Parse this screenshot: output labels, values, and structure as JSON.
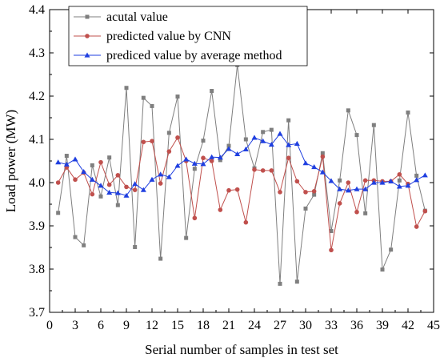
{
  "chart_data": {
    "type": "line",
    "title": "",
    "xlabel": "Serial number of samples in test set",
    "ylabel": "Load power (MW)",
    "xlim": [
      0,
      45
    ],
    "ylim": [
      3.7,
      4.4
    ],
    "xticks": [
      0,
      3,
      6,
      9,
      12,
      15,
      18,
      21,
      24,
      27,
      30,
      33,
      36,
      39,
      42,
      45
    ],
    "yticks": [
      3.7,
      3.8,
      3.9,
      4.0,
      4.1,
      4.2,
      4.3,
      4.4
    ],
    "grid": false,
    "legend_position": "top-left",
    "x": [
      1,
      2,
      3,
      4,
      5,
      6,
      7,
      8,
      9,
      10,
      11,
      12,
      13,
      14,
      15,
      16,
      17,
      18,
      19,
      20,
      21,
      22,
      23,
      24,
      25,
      26,
      27,
      28,
      29,
      30,
      31,
      32,
      33,
      34,
      35,
      36,
      37,
      38,
      39,
      40,
      41,
      42,
      43,
      44
    ],
    "series": [
      {
        "name": "acutal value",
        "color": "#7f7f7f",
        "marker": "square",
        "values": [
          3.93,
          4.062,
          3.874,
          3.855,
          4.04,
          3.968,
          4.058,
          3.948,
          4.219,
          3.851,
          4.196,
          4.177,
          3.824,
          4.115,
          4.199,
          3.872,
          4.032,
          4.097,
          4.212,
          4.052,
          4.085,
          4.272,
          4.1,
          4.033,
          4.117,
          4.122,
          3.766,
          4.144,
          3.771,
          3.94,
          3.972,
          4.068,
          3.888,
          4.005,
          4.167,
          4.11,
          3.929,
          4.133,
          3.799,
          3.845,
          4.005,
          4.162,
          4.016,
          3.935
        ]
      },
      {
        "name": "predicted value by CNN",
        "color": "#c0504d",
        "marker": "circle",
        "values": [
          4.0,
          4.035,
          4.007,
          4.023,
          3.973,
          4.047,
          3.995,
          4.017,
          3.99,
          3.983,
          4.094,
          4.096,
          3.998,
          4.072,
          4.104,
          4.05,
          3.918,
          4.057,
          4.05,
          3.937,
          3.982,
          3.984,
          3.908,
          4.03,
          4.028,
          4.028,
          3.978,
          4.057,
          4.003,
          3.978,
          3.98,
          4.06,
          3.844,
          3.952,
          4.0,
          3.932,
          4.005,
          4.005,
          4.003,
          4.003,
          4.019,
          3.997,
          3.898,
          3.934
        ]
      },
      {
        "name": "prediced value by average method",
        "color": "#1f3fe0",
        "marker": "triangle",
        "values": [
          4.047,
          4.042,
          4.054,
          4.025,
          4.007,
          3.993,
          3.977,
          3.976,
          3.97,
          3.997,
          3.983,
          4.007,
          4.019,
          4.013,
          4.039,
          4.054,
          4.044,
          4.043,
          4.059,
          4.058,
          4.078,
          4.066,
          4.077,
          4.104,
          4.096,
          4.088,
          4.113,
          4.087,
          4.09,
          4.045,
          4.036,
          4.024,
          4.004,
          3.985,
          3.982,
          3.985,
          3.985,
          4.0,
          4.0,
          4.003,
          3.991,
          3.993,
          4.006,
          4.017
        ]
      }
    ]
  }
}
